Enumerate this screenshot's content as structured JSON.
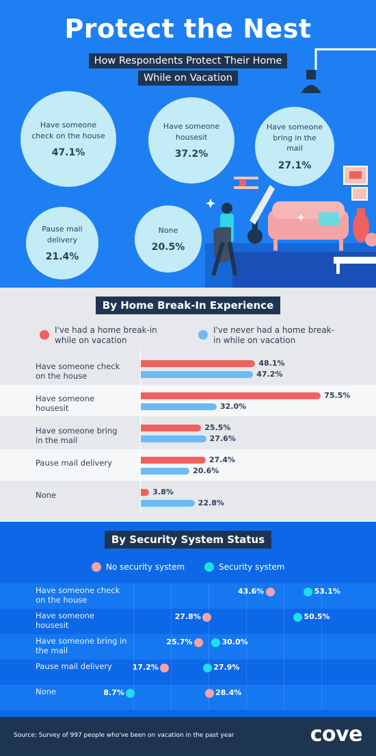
{
  "title": "Protect the Nest",
  "subtitle_line1": "How Respondents Protect Their Home",
  "subtitle_line2": "While on Vacation",
  "overall": [
    {
      "label": "Have someone check on the house",
      "value": "47.1%"
    },
    {
      "label": "Have someone housesit",
      "value": "37.2%"
    },
    {
      "label": "Have someone bring in the mail",
      "value": "27.1%"
    },
    {
      "label": "Pause mail delivery",
      "value": "21.4%"
    },
    {
      "label": "None",
      "value": "20.5%"
    }
  ],
  "colors": {
    "red": "#f0605f",
    "blue": "#6cbbf5",
    "pink": "#f4a3a6",
    "cyan": "#1ee0ea",
    "navy": "#1e3552",
    "primary": "#1e7ff2"
  },
  "chart_data": [
    {
      "type": "bar",
      "title": "By Home Break-In Experience",
      "categories": [
        "Have someone check on the house",
        "Have someone housesit",
        "Have someone bring in the mail",
        "Pause mail delivery",
        "None"
      ],
      "series": [
        {
          "name": "I've had a home break-in while on vacation",
          "values": [
            48.1,
            75.5,
            25.5,
            27.4,
            3.8
          ]
        },
        {
          "name": "I've never had a home break-in while on vacation",
          "values": [
            47.2,
            32.0,
            27.6,
            20.6,
            22.8
          ]
        }
      ]
    },
    {
      "type": "scatter",
      "title": "By Security System Status",
      "categories": [
        "Have someone check on the house",
        "Have someone housesit",
        "Have someone bring in the mail",
        "Pause mail delivery",
        "None"
      ],
      "series": [
        {
          "name": "No security system",
          "values": [
            43.6,
            27.8,
            25.7,
            17.2,
            28.4
          ]
        },
        {
          "name": "Security system",
          "values": [
            53.1,
            50.5,
            30.0,
            27.9,
            8.7
          ]
        }
      ]
    }
  ],
  "footer": {
    "source": "Source: Survey of 997 people who've been on vacation in the past year",
    "logo": "cove"
  }
}
